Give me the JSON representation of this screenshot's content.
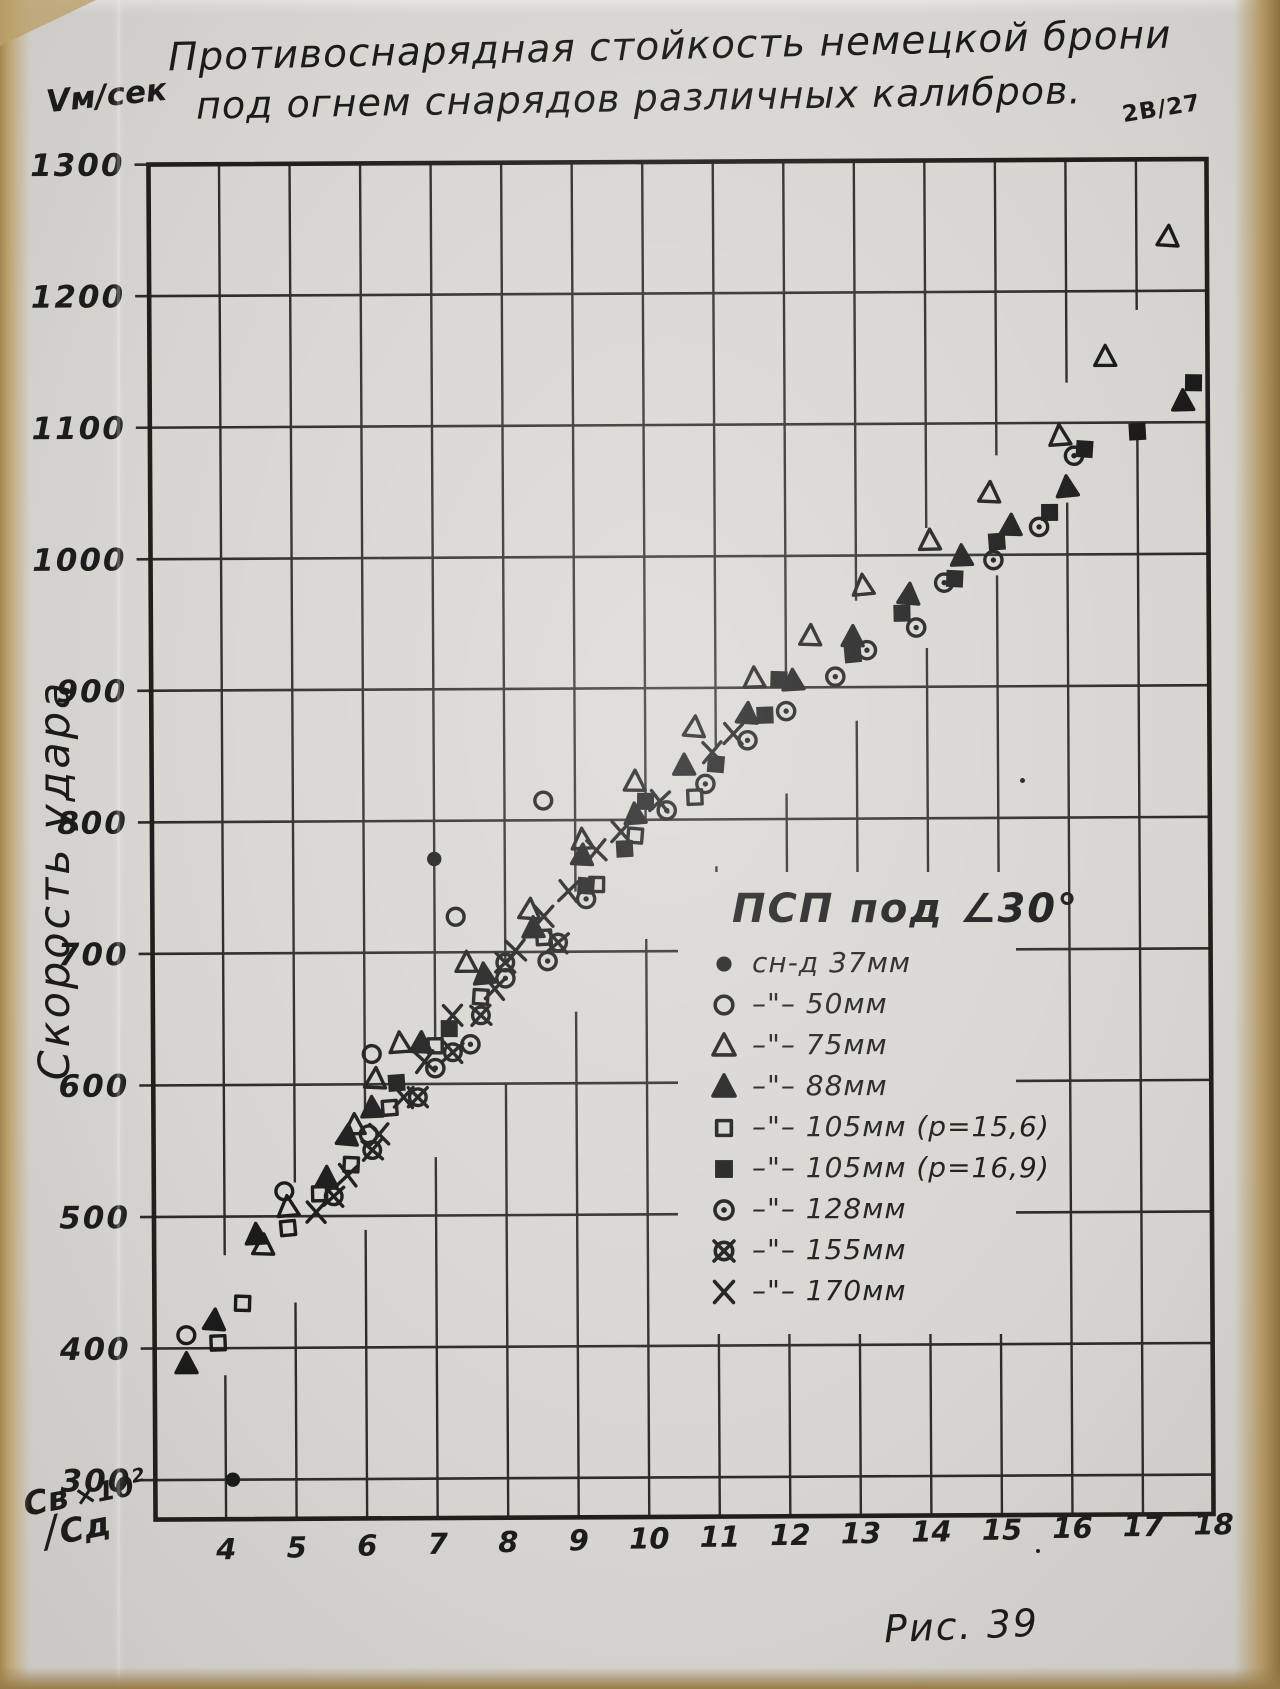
{
  "page": {
    "scan_note": "2В/27",
    "title_line1": "Противоснарядная стойкость немецкой брони",
    "title_line2": "под огнем снарядов  различных калибров.",
    "y_axis_unit": "Vм/сек",
    "y_axis_title": "Скорость удара",
    "x_frac_top": "Cв",
    "x_frac_bottom": "Cд",
    "x_multiplier": "×10",
    "x_exponent": "2",
    "figure_caption": "Рис. 39"
  },
  "colors": {
    "ink": "#1b1b1b",
    "paper": "#d8d6d1",
    "scan_edge_tan": "#b39866"
  },
  "chart_data": {
    "type": "scatter",
    "title": "Противоснарядная стойкость немецкой брони под огнем снарядов различных калибров.",
    "xlabel": "Cв/Cд ×10²",
    "ylabel": "Скорость удара, V м/сек",
    "xlim": [
      3,
      18
    ],
    "ylim": [
      270,
      1300
    ],
    "x_ticks": [
      4,
      5,
      6,
      7,
      8,
      9,
      10,
      11,
      12,
      13,
      14,
      15,
      16,
      17,
      18
    ],
    "y_ticks": [
      300,
      400,
      500,
      600,
      700,
      800,
      900,
      1000,
      1100,
      1200,
      1300
    ],
    "grid": true,
    "legend_header": "ПСП под ∠30°",
    "legend_position": "inside-right-middle",
    "series": [
      {
        "name": "37 мм",
        "marker": "filled-circle",
        "legend_label": "сн-д 37мм",
        "points": [
          [
            4.1,
            300
          ],
          [
            7.0,
            771
          ]
        ]
      },
      {
        "name": "50 мм",
        "marker": "open-circle",
        "legend_label": "–\"– 50мм",
        "points": [
          [
            3.45,
            410
          ],
          [
            4.85,
            519
          ],
          [
            6.05,
            562
          ],
          [
            6.1,
            623
          ],
          [
            7.3,
            727
          ],
          [
            8.55,
            815
          ]
        ]
      },
      {
        "name": "75 мм",
        "marker": "open-triangle",
        "legend_label": "–\"– 75мм",
        "points": [
          [
            4.55,
            478
          ],
          [
            4.9,
            507
          ],
          [
            5.85,
            569
          ],
          [
            6.15,
            604
          ],
          [
            6.5,
            631
          ],
          [
            7.45,
            692
          ],
          [
            8.35,
            732
          ],
          [
            9.1,
            785
          ],
          [
            9.85,
            829
          ],
          [
            10.7,
            870
          ],
          [
            11.55,
            907
          ],
          [
            12.35,
            939
          ],
          [
            13.1,
            977
          ],
          [
            14.05,
            1011
          ],
          [
            14.9,
            1047
          ],
          [
            15.9,
            1090
          ],
          [
            16.55,
            1150
          ],
          [
            17.45,
            1241
          ]
        ]
      },
      {
        "name": "88 мм",
        "marker": "filled-triangle",
        "legend_label": "–\"– 88мм",
        "points": [
          [
            3.45,
            388
          ],
          [
            3.85,
            421
          ],
          [
            4.45,
            486
          ],
          [
            5.45,
            529
          ],
          [
            5.75,
            561
          ],
          [
            6.1,
            582
          ],
          [
            6.8,
            631
          ],
          [
            7.7,
            683
          ],
          [
            8.4,
            718
          ],
          [
            9.1,
            773
          ],
          [
            9.85,
            804
          ],
          [
            10.55,
            841
          ],
          [
            11.45,
            880
          ],
          [
            12.1,
            905
          ],
          [
            12.95,
            938
          ],
          [
            13.75,
            970
          ],
          [
            14.5,
            999
          ],
          [
            15.2,
            1022
          ],
          [
            16.0,
            1051
          ],
          [
            17.65,
            1116
          ]
        ]
      },
      {
        "name": "105 мм (p=15,6)",
        "marker": "open-square",
        "legend_label": "–\"– 105мм (p=15,6)",
        "points": [
          [
            3.9,
            404
          ],
          [
            4.25,
            434
          ],
          [
            4.9,
            491
          ],
          [
            5.35,
            517
          ],
          [
            5.8,
            539
          ],
          [
            6.35,
            582
          ],
          [
            7.0,
            629
          ],
          [
            7.65,
            666
          ],
          [
            8.55,
            711
          ],
          [
            9.3,
            751
          ],
          [
            9.85,
            788
          ],
          [
            10.7,
            817
          ]
        ]
      },
      {
        "name": "105 мм (p=16,9)",
        "marker": "filled-square",
        "legend_label": "–\"– 105мм (p=16,9)",
        "points": [
          [
            6.45,
            601
          ],
          [
            7.2,
            642
          ],
          [
            9.15,
            750
          ],
          [
            9.7,
            778
          ],
          [
            10.0,
            814
          ],
          [
            11.0,
            842
          ],
          [
            11.7,
            879
          ],
          [
            11.9,
            906
          ],
          [
            12.95,
            925
          ],
          [
            13.65,
            956
          ],
          [
            14.4,
            982
          ],
          [
            15.0,
            1010
          ],
          [
            15.75,
            1032
          ],
          [
            16.25,
            1080
          ],
          [
            17.0,
            1093
          ],
          [
            17.8,
            1130
          ]
        ]
      },
      {
        "name": "128 мм",
        "marker": "circle-dot",
        "legend_label": "–\"– 128мм",
        "points": [
          [
            7.0,
            612
          ],
          [
            7.5,
            630
          ],
          [
            8.0,
            680
          ],
          [
            8.6,
            693
          ],
          [
            9.15,
            740
          ],
          [
            10.3,
            807
          ],
          [
            10.85,
            827
          ],
          [
            11.45,
            860
          ],
          [
            12.0,
            882
          ],
          [
            12.7,
            908
          ],
          [
            13.15,
            928
          ],
          [
            13.85,
            945
          ],
          [
            14.25,
            979
          ],
          [
            14.95,
            996
          ],
          [
            15.6,
            1021
          ],
          [
            16.1,
            1075
          ]
        ]
      },
      {
        "name": "155 мм",
        "marker": "circle-x",
        "legend_label": "–\"– 155мм",
        "points": [
          [
            5.55,
            515
          ],
          [
            6.1,
            550
          ],
          [
            6.75,
            590
          ],
          [
            7.25,
            624
          ],
          [
            7.65,
            652
          ],
          [
            8.0,
            692
          ],
          [
            8.75,
            707
          ]
        ]
      },
      {
        "name": "170 мм",
        "marker": "x-cross",
        "legend_label": "–\"– 170мм",
        "points": [
          [
            5.3,
            503
          ],
          [
            5.75,
            531
          ],
          [
            6.2,
            562
          ],
          [
            6.55,
            590
          ],
          [
            6.85,
            617
          ],
          [
            7.25,
            652
          ],
          [
            7.85,
            672
          ],
          [
            8.15,
            701
          ],
          [
            8.55,
            727
          ],
          [
            8.9,
            746
          ],
          [
            9.3,
            777
          ],
          [
            9.65,
            791
          ],
          [
            10.2,
            814
          ],
          [
            10.95,
            851
          ],
          [
            11.25,
            865
          ]
        ]
      }
    ]
  }
}
